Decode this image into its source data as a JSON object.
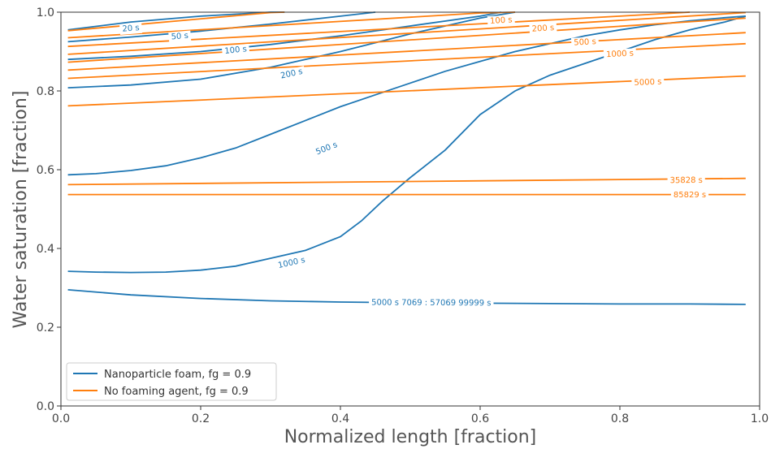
{
  "chart_data": {
    "type": "line",
    "xlabel": "Normalized length [fraction]",
    "ylabel": "Water saturation [fraction]",
    "xlim": [
      0.0,
      1.0
    ],
    "ylim": [
      0.0,
      1.0
    ],
    "x_ticks": [
      "0.0",
      "0.2",
      "0.4",
      "0.6",
      "0.8",
      "1.0"
    ],
    "y_ticks": [
      "0.0",
      "0.2",
      "0.4",
      "0.6",
      "0.8",
      "1.0"
    ],
    "grid": false,
    "legend_position": "lower-left",
    "colors": {
      "nanoparticle": "#1f77b4",
      "no_foaming": "#ff7f0e"
    },
    "legend": [
      {
        "label": "Nanoparticle foam, fg = 0.9",
        "color": "#1f77b4"
      },
      {
        "label": "No foaming agent, fg = 0.9",
        "color": "#ff7f0e"
      }
    ],
    "series": [
      {
        "group": "nanoparticle",
        "label": "20 s",
        "label_at": [
          0.1,
          0.96
        ],
        "x": [
          0.01,
          0.1,
          0.2,
          0.3,
          0.32
        ],
        "y": [
          0.955,
          0.975,
          0.99,
          1.0,
          1.0
        ]
      },
      {
        "group": "nanoparticle",
        "label": "50 s",
        "label_at": [
          0.17,
          0.94
        ],
        "x": [
          0.01,
          0.1,
          0.2,
          0.3,
          0.4,
          0.45
        ],
        "y": [
          0.925,
          0.937,
          0.952,
          0.97,
          0.99,
          1.0
        ]
      },
      {
        "group": "nanoparticle",
        "label": "100 s",
        "label_at": [
          0.25,
          0.905
        ],
        "x": [
          0.01,
          0.1,
          0.2,
          0.3,
          0.4,
          0.5,
          0.6,
          0.63
        ],
        "y": [
          0.88,
          0.888,
          0.9,
          0.918,
          0.94,
          0.965,
          0.99,
          1.0
        ]
      },
      {
        "group": "nanoparticle",
        "label": "200 s",
        "label_at": [
          0.33,
          0.845
        ],
        "x": [
          0.01,
          0.1,
          0.2,
          0.3,
          0.4,
          0.5,
          0.6,
          0.65
        ],
        "y": [
          0.808,
          0.815,
          0.83,
          0.86,
          0.9,
          0.945,
          0.985,
          1.0
        ]
      },
      {
        "group": "nanoparticle",
        "label": "500 s",
        "label_at": [
          0.38,
          0.655
        ],
        "x": [
          0.01,
          0.05,
          0.1,
          0.15,
          0.2,
          0.25,
          0.3,
          0.35,
          0.4,
          0.45,
          0.5,
          0.55,
          0.6,
          0.65,
          0.7,
          0.75,
          0.8,
          0.85,
          0.9,
          0.95,
          0.98
        ],
        "y": [
          0.587,
          0.59,
          0.598,
          0.61,
          0.63,
          0.655,
          0.69,
          0.725,
          0.76,
          0.79,
          0.82,
          0.85,
          0.875,
          0.9,
          0.92,
          0.94,
          0.955,
          0.968,
          0.978,
          0.986,
          0.99
        ]
      },
      {
        "group": "nanoparticle",
        "label": "1000 s",
        "label_at": [
          0.33,
          0.365
        ],
        "x": [
          0.01,
          0.05,
          0.1,
          0.15,
          0.2,
          0.25,
          0.3,
          0.35,
          0.4,
          0.43,
          0.46,
          0.5,
          0.55,
          0.6,
          0.65,
          0.7,
          0.75,
          0.8,
          0.85,
          0.9,
          0.95,
          0.98
        ],
        "y": [
          0.342,
          0.34,
          0.339,
          0.34,
          0.345,
          0.355,
          0.375,
          0.395,
          0.43,
          0.47,
          0.52,
          0.58,
          0.65,
          0.74,
          0.8,
          0.84,
          0.87,
          0.9,
          0.93,
          0.955,
          0.975,
          0.99
        ]
      },
      {
        "group": "nanoparticle",
        "label": "5000 s  7069 : 57069  99999 s",
        "label_at": [
          0.53,
          0.263
        ],
        "x": [
          0.01,
          0.1,
          0.2,
          0.3,
          0.4,
          0.5,
          0.6,
          0.7,
          0.8,
          0.9,
          0.98
        ],
        "y": [
          0.295,
          0.282,
          0.273,
          0.267,
          0.264,
          0.262,
          0.261,
          0.26,
          0.259,
          0.259,
          0.258
        ]
      },
      {
        "group": "no_foaming",
        "label": "100 s",
        "label_at": [
          0.63,
          0.98
        ],
        "x": [
          0.01,
          0.98
        ],
        "y": [
          0.893,
          0.999
        ]
      },
      {
        "group": "no_foaming",
        "label": "200 s",
        "label_at": [
          0.69,
          0.96
        ],
        "x": [
          0.01,
          0.98
        ],
        "y": [
          0.873,
          0.985
        ]
      },
      {
        "group": "no_foaming",
        "label": "500 s",
        "label_at": [
          0.75,
          0.925
        ],
        "x": [
          0.01,
          0.98
        ],
        "y": [
          0.853,
          0.948
        ]
      },
      {
        "group": "no_foaming",
        "label": "1000 s",
        "label_at": [
          0.8,
          0.895
        ],
        "x": [
          0.01,
          0.98
        ],
        "y": [
          0.832,
          0.92
        ]
      },
      {
        "group": "no_foaming",
        "label": "5000 s",
        "label_at": [
          0.84,
          0.823
        ],
        "x": [
          0.01,
          0.98
        ],
        "y": [
          0.762,
          0.838
        ]
      },
      {
        "group": "no_foaming",
        "label": "35828 s",
        "label_at": [
          0.895,
          0.574
        ],
        "x": [
          0.01,
          0.98
        ],
        "y": [
          0.562,
          0.578
        ]
      },
      {
        "group": "no_foaming",
        "label": "85829 s",
        "label_at": [
          0.9,
          0.537
        ],
        "x": [
          0.01,
          0.98
        ],
        "y": [
          0.537,
          0.537
        ]
      },
      {
        "group": "no_foaming",
        "label": "",
        "label_at": null,
        "x": [
          0.01,
          0.3,
          0.32
        ],
        "y": [
          0.953,
          0.999,
          1.0
        ]
      },
      {
        "group": "no_foaming",
        "label": "",
        "label_at": null,
        "x": [
          0.01,
          0.6,
          0.65
        ],
        "y": [
          0.935,
          0.998,
          1.0
        ]
      },
      {
        "group": "no_foaming",
        "label": "",
        "label_at": null,
        "x": [
          0.01,
          0.8,
          0.9
        ],
        "y": [
          0.913,
          0.99,
          1.0
        ]
      }
    ]
  }
}
